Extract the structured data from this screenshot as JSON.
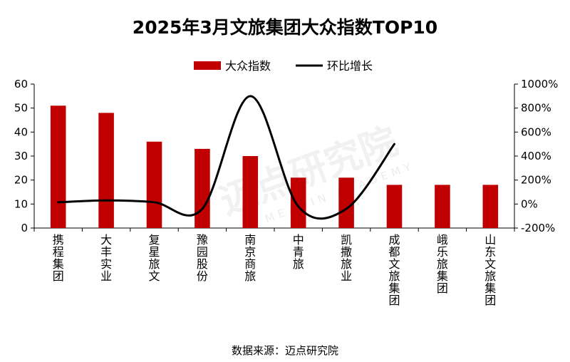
{
  "chart_data": {
    "type": "bar+line",
    "title": "2025年3月文旅集团大众指数TOP10",
    "categories": [
      "携程集团",
      "大丰实业",
      "复星旅文",
      "豫园股份",
      "南京商旅",
      "中青旅",
      "凯撒旅业",
      "成都文旅集团",
      "峨乐旅集团",
      "山东文旅集团"
    ],
    "series": [
      {
        "name": "大众指数",
        "type": "bar",
        "axis": "left",
        "color": "#c00000",
        "values": [
          51,
          48,
          36,
          33,
          30,
          21,
          21,
          18,
          18,
          18
        ]
      },
      {
        "name": "环比增长",
        "type": "line",
        "axis": "right",
        "color": "#000000",
        "unit": "%",
        "values": [
          15,
          30,
          15,
          -40,
          900,
          -20,
          -40,
          500,
          null,
          null
        ]
      }
    ],
    "left_axis": {
      "min": 0,
      "max": 60,
      "ticks": [
        "0",
        "10",
        "20",
        "30",
        "40",
        "50",
        "60"
      ]
    },
    "right_axis": {
      "min": -200,
      "max": 1000,
      "ticks": [
        "-200%",
        "0%",
        "200%",
        "400%",
        "600%",
        "800%",
        "1000%"
      ]
    },
    "legend": {
      "position": "top-center",
      "items": [
        "大众指数",
        "环比增长"
      ]
    },
    "grid": false
  },
  "source": "数据来源：迈点研究院",
  "watermark": {
    "text_cn": "迈点研究院",
    "text_en": "MEADIN ACADEMY"
  }
}
